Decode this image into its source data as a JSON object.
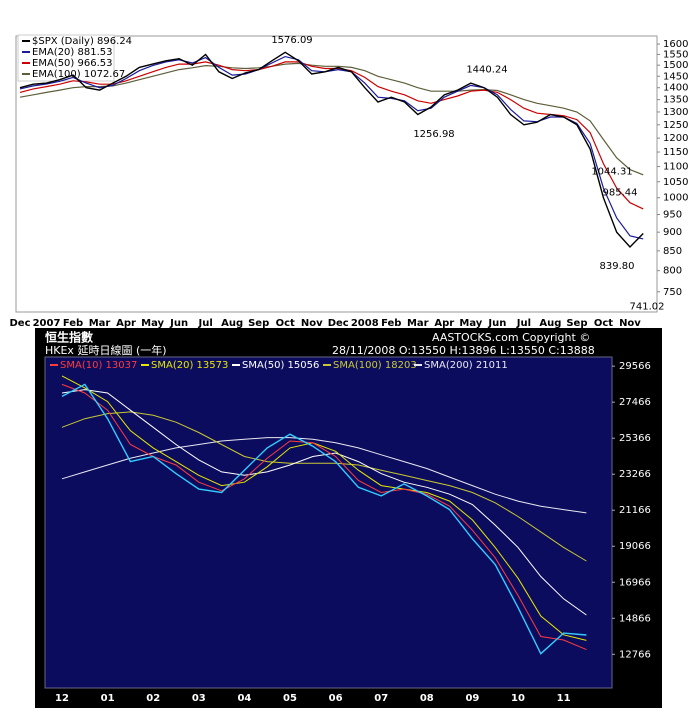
{
  "chart_data": [
    {
      "type": "line",
      "log_scale": true,
      "grid": false,
      "legend": "upper left",
      "categories": [
        "Dec",
        null,
        "2007",
        null,
        "Feb",
        null,
        "Mar",
        null,
        "Apr",
        null,
        "May",
        null,
        "Jun",
        null,
        "Jul",
        null,
        "Aug",
        null,
        "Sep",
        null,
        "Oct",
        null,
        "Nov",
        null,
        "Dec",
        null,
        "2008",
        null,
        "Feb",
        null,
        "Mar",
        null,
        "Apr",
        null,
        "May",
        null,
        "Jun",
        null,
        "Jul",
        null,
        "Aug",
        null,
        "Sep",
        null,
        "Oct",
        null,
        "Nov",
        null
      ],
      "ylim": [
        705,
        1640
      ],
      "yticks": [
        750,
        800,
        850,
        900,
        950,
        1000,
        1050,
        1100,
        1150,
        1200,
        1250,
        1300,
        1350,
        1400,
        1450,
        1500,
        1550,
        1600
      ],
      "series": [
        {
          "name": "$SPX (Daily) 896.24",
          "color": "#000000",
          "values": [
            1400,
            1415,
            1420,
            1435,
            1455,
            1400,
            1390,
            1420,
            1450,
            1490,
            1505,
            1520,
            1530,
            1500,
            1550,
            1470,
            1440,
            1465,
            1480,
            1520,
            1560,
            1520,
            1460,
            1470,
            1490,
            1470,
            1400,
            1340,
            1360,
            1340,
            1290,
            1320,
            1370,
            1390,
            1420,
            1400,
            1360,
            1290,
            1250,
            1260,
            1290,
            1280,
            1250,
            1160,
            1000,
            900,
            860,
            896.24
          ]
        },
        {
          "name": "EMA(20) 881.53",
          "color": "#1a1a9c",
          "values": [
            1395,
            1408,
            1416,
            1428,
            1445,
            1420,
            1400,
            1410,
            1440,
            1475,
            1498,
            1515,
            1525,
            1510,
            1535,
            1490,
            1455,
            1460,
            1480,
            1510,
            1540,
            1525,
            1475,
            1470,
            1480,
            1470,
            1420,
            1360,
            1355,
            1345,
            1305,
            1315,
            1360,
            1385,
            1410,
            1400,
            1370,
            1310,
            1265,
            1262,
            1280,
            1280,
            1255,
            1180,
            1030,
            940,
            890,
            881.53
          ]
        },
        {
          "name": "EMA(50) 966.53",
          "color": "#cc0000",
          "values": [
            1380,
            1395,
            1405,
            1415,
            1430,
            1425,
            1415,
            1415,
            1430,
            1450,
            1470,
            1490,
            1505,
            1505,
            1515,
            1500,
            1480,
            1475,
            1480,
            1495,
            1515,
            1515,
            1495,
            1485,
            1485,
            1475,
            1445,
            1405,
            1385,
            1370,
            1345,
            1335,
            1350,
            1365,
            1385,
            1390,
            1380,
            1350,
            1315,
            1295,
            1290,
            1285,
            1270,
            1220,
            1110,
            1030,
            985,
            966.53
          ]
        },
        {
          "name": "EMA(100) 1072.67",
          "color": "#5e5e3a",
          "values": [
            1360,
            1370,
            1380,
            1390,
            1400,
            1405,
            1405,
            1408,
            1420,
            1435,
            1450,
            1465,
            1480,
            1488,
            1498,
            1495,
            1488,
            1485,
            1488,
            1495,
            1505,
            1508,
            1500,
            1495,
            1495,
            1490,
            1475,
            1450,
            1435,
            1420,
            1400,
            1385,
            1385,
            1385,
            1390,
            1392,
            1388,
            1370,
            1350,
            1335,
            1325,
            1315,
            1300,
            1265,
            1195,
            1130,
            1090,
            1072.67
          ]
        }
      ],
      "annotations": [
        {
          "value": 1576.09,
          "label": "1576.09"
        },
        {
          "value": 1440.24,
          "label": "1440.24"
        },
        {
          "value": 1256.98,
          "label": "1256.98"
        },
        {
          "value": 1044.31,
          "label": "1044.31"
        },
        {
          "value": 985.44,
          "label": "985.44"
        },
        {
          "value": 839.8,
          "label": "839.80"
        },
        {
          "value": 741.02,
          "label": "741.02"
        }
      ]
    },
    {
      "type": "line",
      "log_scale": false,
      "grid": false,
      "legend": "top",
      "title": "恒生指數",
      "subtitle": "HKEx 延時日線圖 (一年)",
      "quote": "28/11/2008 O:13550 H:13896 L:13550 C:13888",
      "copyright": "AASTOCKS.com Copyright ©",
      "categories": [
        "12",
        null,
        "01",
        null,
        "02",
        null,
        "03",
        null,
        "04",
        null,
        "05",
        null,
        "06",
        null,
        "07",
        null,
        "08",
        null,
        "09",
        null,
        "10",
        null,
        "11",
        null
      ],
      "ylim": [
        10800,
        30100
      ],
      "yticks": [
        12766,
        14866,
        16966,
        19066,
        21166,
        23266,
        25366,
        27466,
        29566
      ],
      "series": [
        {
          "color": "#33ccff",
          "values": [
            27800,
            28500,
            26500,
            24000,
            24300,
            23300,
            22400,
            22200,
            23500,
            24800,
            25600,
            24900,
            24000,
            22500,
            22000,
            22700,
            22000,
            21200,
            19500,
            18000,
            15500,
            12800,
            14000,
            13888
          ]
        },
        {
          "name": "SMA(10) 13037",
          "color": "#ff3b3b",
          "values": [
            28500,
            28000,
            27000,
            25000,
            24300,
            23800,
            22800,
            22300,
            23000,
            24200,
            25200,
            25100,
            24300,
            22900,
            22200,
            22400,
            22100,
            21400,
            20000,
            18400,
            16200,
            13800,
            13600,
            13037
          ]
        },
        {
          "name": "SMA(20) 13573",
          "color": "#e6e600",
          "values": [
            29000,
            28300,
            27500,
            25800,
            24800,
            24000,
            23200,
            22600,
            22800,
            23700,
            24800,
            25100,
            24600,
            23500,
            22600,
            22400,
            22200,
            21700,
            20600,
            19000,
            17200,
            15000,
            13900,
            13573
          ]
        },
        {
          "name": "SMA(50) 15056",
          "color": "#ffffff",
          "values": [
            28000,
            28200,
            28000,
            27000,
            26000,
            25000,
            24100,
            23400,
            23200,
            23400,
            23800,
            24300,
            24500,
            24000,
            23300,
            22800,
            22500,
            22100,
            21500,
            20300,
            19000,
            17300,
            16000,
            15056
          ]
        },
        {
          "name": "SMA(100) 18203",
          "color": "#c8c832",
          "values": [
            26000,
            26500,
            26800,
            26900,
            26700,
            26300,
            25700,
            25000,
            24300,
            24000,
            23900,
            23900,
            23900,
            23800,
            23500,
            23200,
            22900,
            22600,
            22200,
            21600,
            20800,
            19900,
            19000,
            18203
          ]
        },
        {
          "name": "SMA(200) 21011",
          "color": "#e8e8f0",
          "values": [
            23000,
            23400,
            23800,
            24200,
            24500,
            24800,
            25000,
            25200,
            25300,
            25400,
            25400,
            25300,
            25100,
            24800,
            24400,
            24000,
            23600,
            23100,
            22600,
            22100,
            21700,
            21400,
            21200,
            21011
          ]
        }
      ]
    }
  ]
}
